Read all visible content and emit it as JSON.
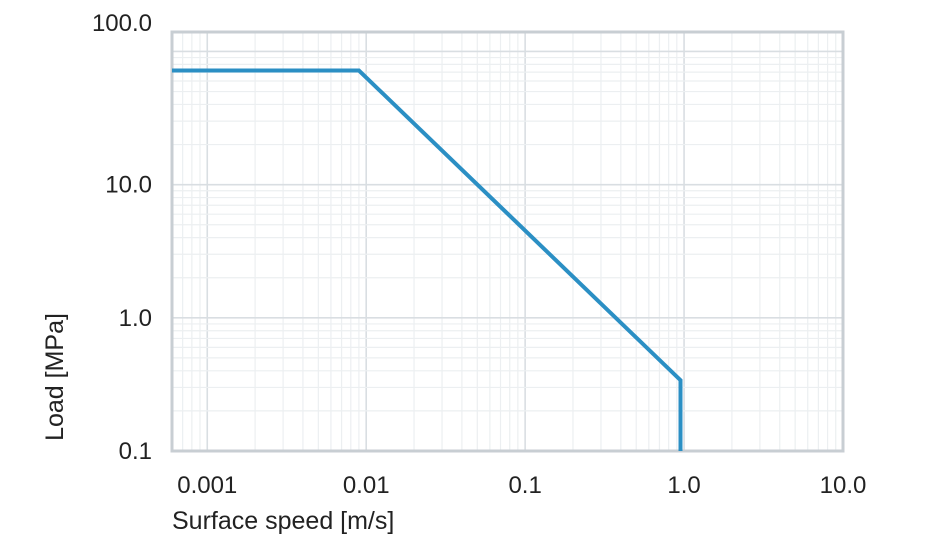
{
  "chart_data": {
    "type": "line",
    "xlabel": "Surface speed [m/s]",
    "ylabel": "Load [MPa]",
    "xscale": "log",
    "yscale": "log",
    "xlim": [
      0.0006,
      10.0
    ],
    "ylim": [
      0.1,
      140.0
    ],
    "x_ticks": [
      {
        "value": 0.001,
        "label": "0.001"
      },
      {
        "value": 0.01,
        "label": "0.01"
      },
      {
        "value": 0.1,
        "label": "0.1"
      },
      {
        "value": 1.0,
        "label": "1.0"
      },
      {
        "value": 10.0,
        "label": "10.0"
      }
    ],
    "y_ticks": [
      {
        "value": 0.1,
        "label": "0.1"
      },
      {
        "value": 1.0,
        "label": "1.0"
      },
      {
        "value": 10.0,
        "label": "10.0"
      },
      {
        "value": 100.0,
        "label": "100.0"
      }
    ],
    "grid": true,
    "series": [
      {
        "x": [
          0.0006,
          0.009,
          0.95,
          0.95
        ],
        "y": [
          72,
          72,
          0.34,
          0.1
        ]
      }
    ],
    "colors": {
      "line": "#2b8fc4",
      "frame": "#c8ced3",
      "grid_major": "#d9dee2",
      "grid_minor": "#eceff1",
      "text": "#222222"
    }
  }
}
